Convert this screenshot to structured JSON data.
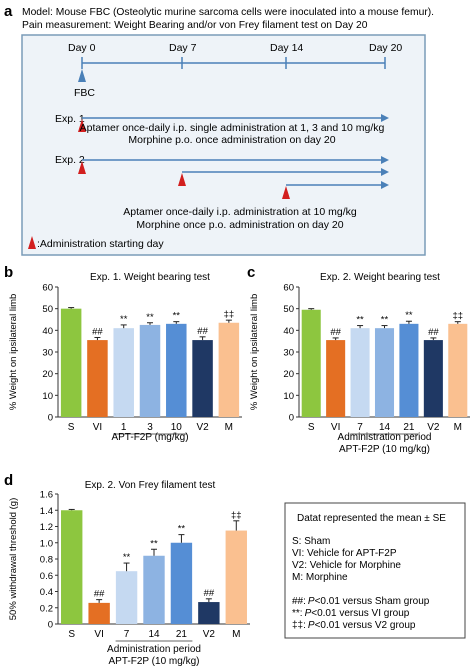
{
  "panel_a": {
    "letter": "a",
    "model_line": "Model: Mouse FBC (Osteolytic murine sarcoma cells were inoculated into a mouse femur).",
    "pain_line": "Pain measurement: Weight Bearing and/or von Frey filament test on Day 20",
    "days": [
      "Day 0",
      "Day 7",
      "Day 14",
      "Day 20"
    ],
    "fbc_label": "FBC",
    "exp1_label": "Exp. 1",
    "exp1_line1": "Aptamer once-daily i.p. single administration at 1, 3 and 10 mg/kg",
    "exp1_line2": "Morphine p.o. once administration on day 20",
    "exp2_label": "Exp. 2",
    "exp2_line1": "Aptamer once-daily i.p. administration at 10 mg/kg",
    "exp2_line2": "Morphine once p.o. administration on day 20",
    "legend_text": ":Administration starting day",
    "colors": {
      "border": "#7a9cb8",
      "box_fill": "#eef3f8",
      "arrow": "#4a80b8",
      "marker": "#d21f1f"
    }
  },
  "chart_data": [
    {
      "id": "b",
      "letter": "b",
      "type": "bar",
      "title": "Exp. 1. Weight bearing test",
      "ylabel": "% Weight on ipsilateral limb",
      "xlabel": "APT-F2P (mg/kg)",
      "xlabel2": "",
      "ylim": [
        0,
        60
      ],
      "yticks": [
        "0",
        "10",
        "20",
        "30",
        "40",
        "50",
        "60"
      ],
      "categories": [
        "S",
        "VI",
        "1",
        "3",
        "10",
        "V2",
        "M"
      ],
      "values": [
        50,
        35.5,
        41,
        42.5,
        43,
        35.5,
        43.5
      ],
      "errors": [
        0.5,
        1.2,
        1.5,
        1,
        1,
        1.5,
        1.2
      ],
      "annotations": [
        "",
        "##",
        "**",
        "**",
        "**",
        "##",
        "‡‡"
      ],
      "colors": [
        "#8dc63f",
        "#e46f23",
        "#c5d9f1",
        "#8db3e2",
        "#558ed5",
        "#1f3864",
        "#fac090"
      ]
    },
    {
      "id": "c",
      "letter": "c",
      "type": "bar",
      "title": "Exp. 2. Weight bearing test",
      "ylabel": "% Weight on ipsilateral limb",
      "xlabel": "Administration period",
      "xlabel2": "APT-F2P (10 mg/kg)",
      "ylim": [
        0,
        60
      ],
      "yticks": [
        "0",
        "10",
        "20",
        "30",
        "40",
        "50",
        "60"
      ],
      "categories": [
        "S",
        "VI",
        "7",
        "14",
        "21",
        "V2",
        "M"
      ],
      "values": [
        49.5,
        35.5,
        41,
        41,
        43,
        35.5,
        43
      ],
      "errors": [
        0.5,
        1,
        1.2,
        1.2,
        1.2,
        1,
        1
      ],
      "annotations": [
        "",
        "##",
        "**",
        "**",
        "**",
        "##",
        "‡‡"
      ],
      "colors": [
        "#8dc63f",
        "#e46f23",
        "#c5d9f1",
        "#8db3e2",
        "#558ed5",
        "#1f3864",
        "#fac090"
      ]
    },
    {
      "id": "d",
      "letter": "d",
      "type": "bar",
      "title": "Exp. 2. Von Frey filament test",
      "ylabel": "50% withdrawal threshold (g)",
      "xlabel": "Administration period",
      "xlabel2": "APT-F2P (10 mg/kg)",
      "ylim": [
        0,
        1.6
      ],
      "yticks": [
        "0",
        "0.2",
        "0.4",
        "0.6",
        "0.8",
        "1.0",
        "1.2",
        "1.4",
        "1.6"
      ],
      "categories": [
        "S",
        "VI",
        "7",
        "14",
        "21",
        "V2",
        "M"
      ],
      "values": [
        1.4,
        0.26,
        0.65,
        0.84,
        1.0,
        0.27,
        1.15
      ],
      "errors": [
        0.01,
        0.04,
        0.1,
        0.08,
        0.1,
        0.04,
        0.12
      ],
      "annotations": [
        "",
        "##",
        "**",
        "**",
        "**",
        "##",
        "‡‡"
      ],
      "colors": [
        "#8dc63f",
        "#e46f23",
        "#c5d9f1",
        "#8db3e2",
        "#558ed5",
        "#1f3864",
        "#fac090"
      ]
    }
  ],
  "legend_box": {
    "heading": "Datat represented the mean ± SE",
    "abbreviations": [
      "S: Sham",
      "VI: Vehicle for APT-F2P",
      "V2: Vehicle for Morphine",
      "M: Morphine"
    ],
    "stats": [
      {
        "mark": "##:",
        "p": "P",
        "rest": "<0.01 versus Sham group"
      },
      {
        "mark": "**:",
        "p": "P",
        "rest": "<0.01 versus VI group"
      },
      {
        "mark": "‡‡:",
        "p": "P",
        "rest": "<0.01 versus V2 group"
      }
    ]
  }
}
